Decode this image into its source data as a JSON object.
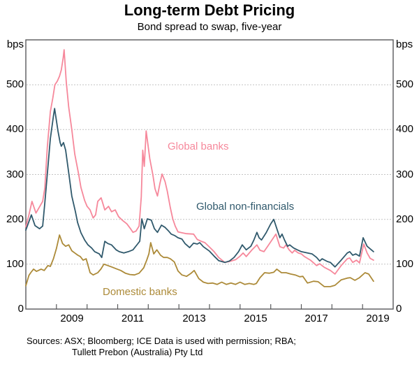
{
  "header": {
    "title": "Long-term Debt Pricing",
    "subtitle": "Bond spread to swap, five-year"
  },
  "axes": {
    "unit": "bps",
    "y_ticks": [
      0,
      100,
      200,
      300,
      400,
      500
    ],
    "y_max": 600,
    "x_label_years": [
      "2009",
      "2011",
      "2013",
      "2015",
      "2017",
      "2019"
    ],
    "x_tick_years": [
      2009,
      2010,
      2011,
      2012,
      2013,
      2014,
      2015,
      2016,
      2017,
      2018,
      2019
    ]
  },
  "footer": {
    "sources_line1": "Sources: ASX; Bloomberg; ICE Data is used with permission; RBA;",
    "sources_line2": "Tullett Prebon (Australia) Pty Ltd"
  },
  "style_colors": {
    "frame": "#58595b",
    "gridline": "#c4c4c4"
  },
  "chart_data": {
    "type": "line",
    "title": "Long-term Debt Pricing",
    "subtitle": "Bond spread to swap, five-year",
    "ylabel": "bps",
    "xlabel": "",
    "x_range": [
      2008,
      2020
    ],
    "y_range": [
      0,
      600
    ],
    "grid": "horizontal-dotted",
    "legend": "inline-labels",
    "series": [
      {
        "name": "Global banks",
        "color": "#f6889b",
        "points": [
          [
            2008.0,
            183
          ],
          [
            2008.1,
            210
          ],
          [
            2008.2,
            240
          ],
          [
            2008.33,
            214
          ],
          [
            2008.45,
            228
          ],
          [
            2008.55,
            240
          ],
          [
            2008.62,
            270
          ],
          [
            2008.7,
            360
          ],
          [
            2008.8,
            440
          ],
          [
            2008.88,
            470
          ],
          [
            2008.95,
            500
          ],
          [
            2009.03,
            508
          ],
          [
            2009.1,
            519
          ],
          [
            2009.16,
            533
          ],
          [
            2009.22,
            560
          ],
          [
            2009.25,
            578
          ],
          [
            2009.32,
            506
          ],
          [
            2009.4,
            450
          ],
          [
            2009.5,
            400
          ],
          [
            2009.6,
            345
          ],
          [
            2009.73,
            299
          ],
          [
            2009.8,
            271
          ],
          [
            2009.92,
            242
          ],
          [
            2010.0,
            229
          ],
          [
            2010.1,
            221
          ],
          [
            2010.2,
            203
          ],
          [
            2010.28,
            210
          ],
          [
            2010.35,
            240
          ],
          [
            2010.46,
            248
          ],
          [
            2010.58,
            221
          ],
          [
            2010.7,
            229
          ],
          [
            2010.8,
            217
          ],
          [
            2010.92,
            221
          ],
          [
            2011.03,
            206
          ],
          [
            2011.15,
            198
          ],
          [
            2011.3,
            190
          ],
          [
            2011.42,
            179
          ],
          [
            2011.5,
            171
          ],
          [
            2011.6,
            174
          ],
          [
            2011.7,
            185
          ],
          [
            2011.77,
            250
          ],
          [
            2011.82,
            354
          ],
          [
            2011.87,
            318
          ],
          [
            2011.93,
            397
          ],
          [
            2012.05,
            335
          ],
          [
            2012.15,
            299
          ],
          [
            2012.22,
            268
          ],
          [
            2012.3,
            252
          ],
          [
            2012.38,
            280
          ],
          [
            2012.45,
            301
          ],
          [
            2012.55,
            284
          ],
          [
            2012.62,
            263
          ],
          [
            2012.72,
            226
          ],
          [
            2012.8,
            201
          ],
          [
            2012.88,
            185
          ],
          [
            2012.97,
            172
          ],
          [
            2013.1,
            170
          ],
          [
            2013.25,
            168
          ],
          [
            2013.48,
            167
          ],
          [
            2013.6,
            155
          ],
          [
            2013.73,
            151
          ],
          [
            2013.85,
            148
          ],
          [
            2014.0,
            138
          ],
          [
            2014.15,
            128
          ],
          [
            2014.3,
            115
          ],
          [
            2014.5,
            104
          ],
          [
            2014.65,
            106
          ],
          [
            2014.85,
            110
          ],
          [
            2015.0,
            118
          ],
          [
            2015.1,
            125
          ],
          [
            2015.2,
            117
          ],
          [
            2015.4,
            133
          ],
          [
            2015.55,
            143
          ],
          [
            2015.65,
            131
          ],
          [
            2015.78,
            128
          ],
          [
            2015.9,
            140
          ],
          [
            2016.05,
            155
          ],
          [
            2016.17,
            167
          ],
          [
            2016.3,
            139
          ],
          [
            2016.42,
            136
          ],
          [
            2016.5,
            143
          ],
          [
            2016.6,
            132
          ],
          [
            2016.7,
            125
          ],
          [
            2016.78,
            131
          ],
          [
            2016.9,
            125
          ],
          [
            2017.0,
            123
          ],
          [
            2017.1,
            117
          ],
          [
            2017.3,
            109
          ],
          [
            2017.5,
            97
          ],
          [
            2017.6,
            101
          ],
          [
            2017.75,
            93
          ],
          [
            2017.95,
            86
          ],
          [
            2018.1,
            78
          ],
          [
            2018.3,
            97
          ],
          [
            2018.5,
            112
          ],
          [
            2018.58,
            114
          ],
          [
            2018.68,
            104
          ],
          [
            2018.8,
            109
          ],
          [
            2018.9,
            103
          ],
          [
            2019.04,
            145
          ],
          [
            2019.15,
            125
          ],
          [
            2019.25,
            113
          ],
          [
            2019.36,
            109
          ]
        ]
      },
      {
        "name": "Global non-financials",
        "color": "#30596c",
        "points": [
          [
            2008.0,
            176
          ],
          [
            2008.1,
            195
          ],
          [
            2008.18,
            210
          ],
          [
            2008.3,
            186
          ],
          [
            2008.45,
            179
          ],
          [
            2008.55,
            185
          ],
          [
            2008.62,
            237
          ],
          [
            2008.7,
            300
          ],
          [
            2008.8,
            380
          ],
          [
            2008.9,
            430
          ],
          [
            2008.94,
            447
          ],
          [
            2009.05,
            397
          ],
          [
            2009.12,
            371
          ],
          [
            2009.16,
            363
          ],
          [
            2009.23,
            371
          ],
          [
            2009.3,
            354
          ],
          [
            2009.41,
            299
          ],
          [
            2009.5,
            252
          ],
          [
            2009.62,
            217
          ],
          [
            2009.69,
            193
          ],
          [
            2009.8,
            170
          ],
          [
            2009.92,
            154
          ],
          [
            2010.03,
            143
          ],
          [
            2010.15,
            136
          ],
          [
            2010.25,
            128
          ],
          [
            2010.4,
            123
          ],
          [
            2010.48,
            115
          ],
          [
            2010.58,
            151
          ],
          [
            2010.68,
            146
          ],
          [
            2010.8,
            143
          ],
          [
            2010.95,
            132
          ],
          [
            2011.05,
            128
          ],
          [
            2011.2,
            125
          ],
          [
            2011.35,
            128
          ],
          [
            2011.5,
            132
          ],
          [
            2011.65,
            145
          ],
          [
            2011.72,
            151
          ],
          [
            2011.79,
            201
          ],
          [
            2011.87,
            179
          ],
          [
            2011.97,
            201
          ],
          [
            2012.1,
            198
          ],
          [
            2012.2,
            179
          ],
          [
            2012.3,
            171
          ],
          [
            2012.43,
            187
          ],
          [
            2012.55,
            182
          ],
          [
            2012.65,
            175
          ],
          [
            2012.75,
            167
          ],
          [
            2012.86,
            164
          ],
          [
            2012.97,
            159
          ],
          [
            2013.1,
            156
          ],
          [
            2013.2,
            146
          ],
          [
            2013.35,
            137
          ],
          [
            2013.48,
            147
          ],
          [
            2013.6,
            145
          ],
          [
            2013.68,
            148
          ],
          [
            2013.8,
            139
          ],
          [
            2014.0,
            129
          ],
          [
            2014.15,
            118
          ],
          [
            2014.3,
            108
          ],
          [
            2014.5,
            104
          ],
          [
            2014.65,
            107
          ],
          [
            2014.8,
            115
          ],
          [
            2014.95,
            128
          ],
          [
            2015.07,
            143
          ],
          [
            2015.2,
            132
          ],
          [
            2015.35,
            140
          ],
          [
            2015.45,
            154
          ],
          [
            2015.55,
            171
          ],
          [
            2015.62,
            159
          ],
          [
            2015.7,
            154
          ],
          [
            2015.85,
            170
          ],
          [
            2016.0,
            190
          ],
          [
            2016.1,
            200
          ],
          [
            2016.22,
            175
          ],
          [
            2016.3,
            159
          ],
          [
            2016.37,
            167
          ],
          [
            2016.45,
            154
          ],
          [
            2016.55,
            140
          ],
          [
            2016.62,
            143
          ],
          [
            2016.75,
            136
          ],
          [
            2016.87,
            132
          ],
          [
            2017.0,
            128
          ],
          [
            2017.2,
            125
          ],
          [
            2017.35,
            123
          ],
          [
            2017.5,
            115
          ],
          [
            2017.6,
            107
          ],
          [
            2017.68,
            112
          ],
          [
            2017.85,
            106
          ],
          [
            2017.95,
            104
          ],
          [
            2018.1,
            94
          ],
          [
            2018.3,
            109
          ],
          [
            2018.5,
            125
          ],
          [
            2018.58,
            128
          ],
          [
            2018.68,
            120
          ],
          [
            2018.78,
            123
          ],
          [
            2018.9,
            118
          ],
          [
            2019.02,
            159
          ],
          [
            2019.15,
            140
          ],
          [
            2019.36,
            128
          ]
        ]
      },
      {
        "name": "Domestic banks",
        "color": "#ac8a38",
        "points": [
          [
            2008.0,
            52
          ],
          [
            2008.1,
            75
          ],
          [
            2008.16,
            81
          ],
          [
            2008.25,
            89
          ],
          [
            2008.35,
            84
          ],
          [
            2008.5,
            89
          ],
          [
            2008.6,
            86
          ],
          [
            2008.72,
            97
          ],
          [
            2008.8,
            95
          ],
          [
            2008.9,
            112
          ],
          [
            2009.0,
            135
          ],
          [
            2009.1,
            165
          ],
          [
            2009.2,
            146
          ],
          [
            2009.3,
            140
          ],
          [
            2009.4,
            143
          ],
          [
            2009.5,
            130
          ],
          [
            2009.6,
            125
          ],
          [
            2009.7,
            120
          ],
          [
            2009.78,
            117
          ],
          [
            2009.87,
            109
          ],
          [
            2009.97,
            112
          ],
          [
            2010.1,
            81
          ],
          [
            2010.2,
            76
          ],
          [
            2010.35,
            81
          ],
          [
            2010.45,
            89
          ],
          [
            2010.55,
            100
          ],
          [
            2010.68,
            97
          ],
          [
            2010.8,
            94
          ],
          [
            2010.95,
            90
          ],
          [
            2011.1,
            86
          ],
          [
            2011.25,
            80
          ],
          [
            2011.4,
            77
          ],
          [
            2011.55,
            76
          ],
          [
            2011.7,
            80
          ],
          [
            2011.85,
            92
          ],
          [
            2011.95,
            109
          ],
          [
            2012.02,
            123
          ],
          [
            2012.08,
            148
          ],
          [
            2012.18,
            123
          ],
          [
            2012.28,
            132
          ],
          [
            2012.4,
            120
          ],
          [
            2012.5,
            115
          ],
          [
            2012.62,
            115
          ],
          [
            2012.72,
            112
          ],
          [
            2012.85,
            105
          ],
          [
            2012.97,
            85
          ],
          [
            2013.1,
            76
          ],
          [
            2013.25,
            73
          ],
          [
            2013.4,
            80
          ],
          [
            2013.5,
            86
          ],
          [
            2013.65,
            68
          ],
          [
            2013.8,
            60
          ],
          [
            2013.95,
            57
          ],
          [
            2014.1,
            58
          ],
          [
            2014.25,
            55
          ],
          [
            2014.4,
            60
          ],
          [
            2014.55,
            55
          ],
          [
            2014.7,
            58
          ],
          [
            2014.85,
            55
          ],
          [
            2015.0,
            60
          ],
          [
            2015.15,
            55
          ],
          [
            2015.3,
            57
          ],
          [
            2015.45,
            55
          ],
          [
            2015.53,
            57
          ],
          [
            2015.65,
            70
          ],
          [
            2015.8,
            81
          ],
          [
            2015.95,
            80
          ],
          [
            2016.1,
            82
          ],
          [
            2016.2,
            89
          ],
          [
            2016.35,
            81
          ],
          [
            2016.5,
            81
          ],
          [
            2016.65,
            78
          ],
          [
            2016.8,
            76
          ],
          [
            2016.95,
            72
          ],
          [
            2017.05,
            73
          ],
          [
            2017.2,
            58
          ],
          [
            2017.4,
            62
          ],
          [
            2017.55,
            61
          ],
          [
            2017.75,
            50
          ],
          [
            2017.95,
            50
          ],
          [
            2018.1,
            53
          ],
          [
            2018.3,
            65
          ],
          [
            2018.5,
            69
          ],
          [
            2018.6,
            70
          ],
          [
            2018.75,
            64
          ],
          [
            2018.9,
            70
          ],
          [
            2019.08,
            81
          ],
          [
            2019.2,
            78
          ],
          [
            2019.36,
            62
          ]
        ]
      }
    ]
  }
}
